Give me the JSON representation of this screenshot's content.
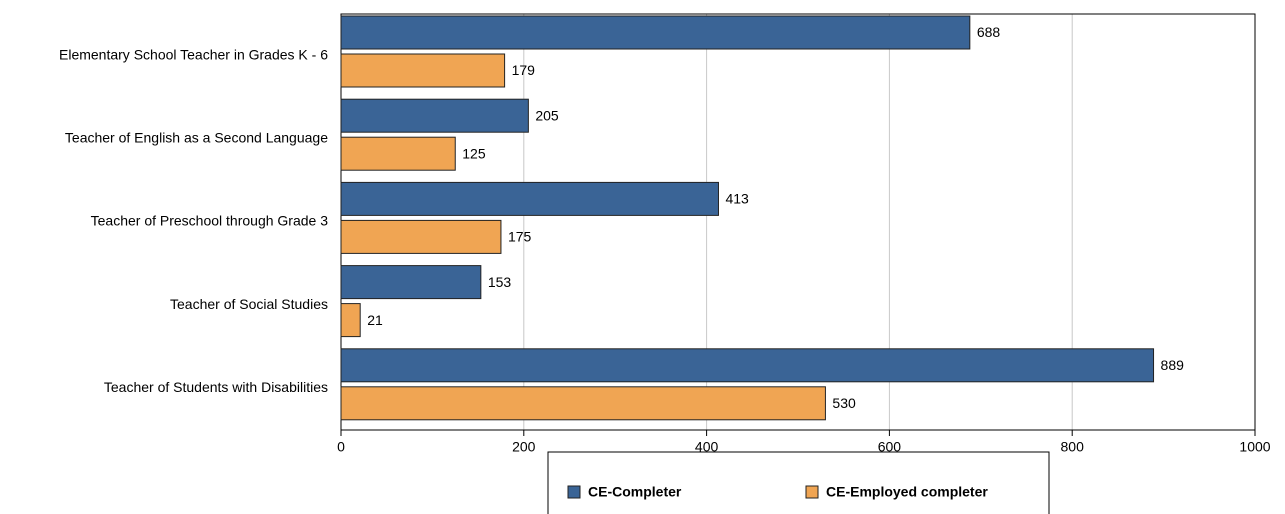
{
  "chart_data": {
    "type": "bar",
    "orientation": "horizontal",
    "categories": [
      "Elementary School Teacher in Grades K - 6",
      "Teacher of English as a Second Language",
      "Teacher of Preschool through Grade 3",
      "Teacher of Social Studies",
      "Teacher of Students with Disabilities"
    ],
    "series": [
      {
        "name": "CE-Completer",
        "color": "#3a6496",
        "values": [
          688,
          205,
          413,
          153,
          889
        ]
      },
      {
        "name": "CE-Employed completer",
        "color": "#f0a553",
        "values": [
          179,
          125,
          175,
          21,
          530
        ]
      }
    ],
    "xlim": [
      0,
      1000
    ],
    "xticks": [
      0,
      200,
      400,
      600,
      800,
      1000
    ],
    "grid": true,
    "legend": "bottom"
  }
}
